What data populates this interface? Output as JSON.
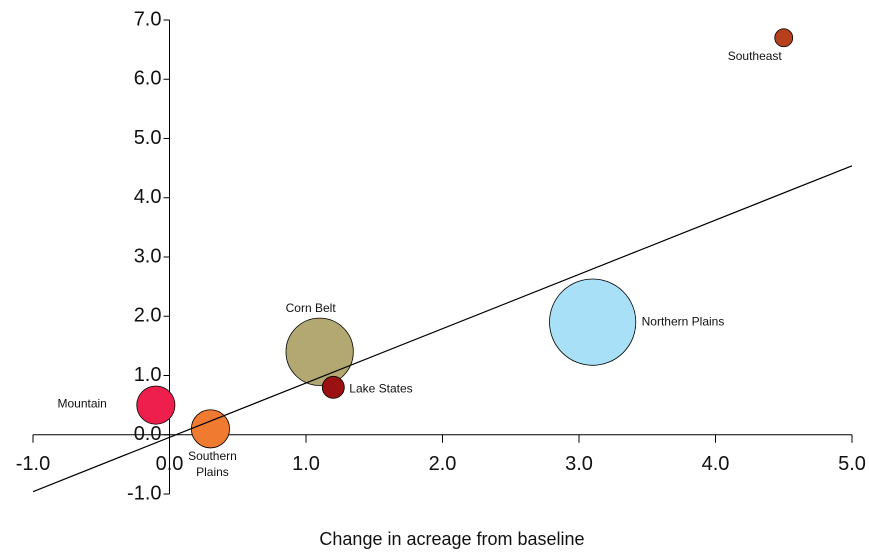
{
  "chart_data": {
    "type": "bubble",
    "xlabel": "Change in acreage from baseline",
    "xlim": [
      -1,
      5
    ],
    "xticks": [
      {
        "value": -1,
        "label": "-1.0"
      },
      {
        "value": 0,
        "label": "0.0"
      },
      {
        "value": 1,
        "label": "1.0"
      },
      {
        "value": 2,
        "label": "2.0"
      },
      {
        "value": 3,
        "label": "3.0"
      },
      {
        "value": 4,
        "label": "4.0"
      },
      {
        "value": 5,
        "label": "5.0"
      }
    ],
    "ylim": [
      -1,
      7
    ],
    "yticks": [
      {
        "value": -1,
        "label": "-1.0"
      },
      {
        "value": 0,
        "label": "0.0"
      },
      {
        "value": 1,
        "label": "1.0"
      },
      {
        "value": 2,
        "label": "2.0"
      },
      {
        "value": 3,
        "label": "3.0"
      },
      {
        "value": 4,
        "label": "4.0"
      },
      {
        "value": 5,
        "label": "5.0"
      },
      {
        "value": 6,
        "label": "6.0"
      },
      {
        "value": 7,
        "label": "7.0"
      }
    ],
    "points": [
      {
        "name": "Southeast",
        "x": 4.5,
        "y": 6.7,
        "size": 1,
        "color": "#b5401b"
      },
      {
        "name": "Northern Plains",
        "x": 3.1,
        "y": 1.9,
        "size": 23,
        "color": "#a8e0f8"
      },
      {
        "name": "Corn Belt",
        "x": 1.1,
        "y": 1.4,
        "size": 14,
        "color": "#b3a872"
      },
      {
        "name": "Lake States",
        "x": 1.2,
        "y": 0.8,
        "size": 1.5,
        "color": "#9b1010"
      },
      {
        "name": "Mountain",
        "x": -0.1,
        "y": 0.5,
        "size": 4.5,
        "color": "#ee1f4d"
      },
      {
        "name": "Southern Plains",
        "x": 0.3,
        "y": 0.1,
        "size": 4.5,
        "color": "#f07a30"
      }
    ],
    "trendline": {
      "x": [
        -1,
        5
      ],
      "y": [
        -0.96,
        4.54
      ]
    }
  }
}
